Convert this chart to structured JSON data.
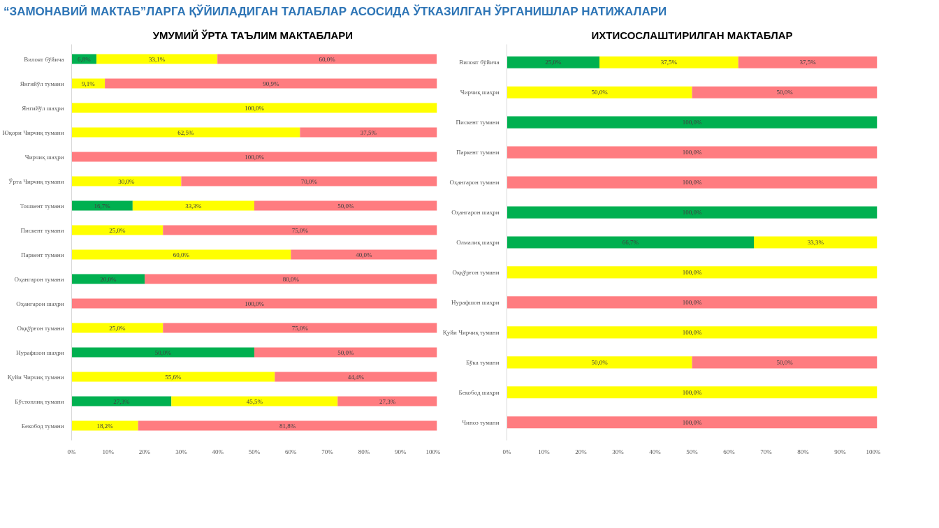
{
  "chart_data": [
    {
      "type": "bar",
      "orientation": "horizontal",
      "stacked": true,
      "title": "УМУМИЙ ЎРТА ТАЪЛИМ  МАКТАБЛАРИ",
      "annotations": [
        "“ЗАМОНАВИЙ МАКТАБ”ЛАРГА ҚЎЙИЛАДИГАН ТАЛАБЛАР АСОСИДА ЎТКАЗИЛГАН ЎРГАНИШЛАР НАТИЖАЛАРИ"
      ],
      "categories": [
        "Вилоят бўйича",
        "Янгийўл тумани",
        "Янгийўл шаҳри",
        "Юқори Чирчиқ тумани",
        "Чирчиқ шаҳри",
        "Ўрта Чирчиқ тумани",
        "Тошкент тумани",
        "Пискент тумани",
        "Паркент тумани",
        "Оҳангарон тумани",
        "Оҳангарон шаҳри",
        "Оққўрғон тумани",
        "Нурафшон шаҳри",
        "Қуйи Чирчиқ тумани",
        "Бўстонлиқ тумани",
        "Бекобод тумани"
      ],
      "xlim": [
        0,
        100
      ],
      "xticks": [
        {
          "value": 0,
          "label": "0%"
        },
        {
          "value": 10,
          "label": "10%"
        },
        {
          "value": 20,
          "label": "20%"
        },
        {
          "value": 30,
          "label": "30%"
        },
        {
          "value": 40,
          "label": "40%"
        },
        {
          "value": 50,
          "label": "50%"
        },
        {
          "value": 60,
          "label": "60%"
        },
        {
          "value": 70,
          "label": "70%"
        },
        {
          "value": 80,
          "label": "80%"
        },
        {
          "value": 90,
          "label": "90%"
        },
        {
          "value": 100,
          "label": "100%"
        }
      ],
      "grid": false,
      "series": [
        {
          "color": "#00b050",
          "values": [
            6.8,
            0,
            0,
            0,
            0,
            0,
            16.7,
            0,
            0,
            20,
            0,
            0,
            50,
            0,
            27.3,
            0
          ],
          "value_labels": [
            "6,8%",
            null,
            null,
            null,
            null,
            null,
            "16,7%",
            null,
            null,
            "20,0%",
            null,
            null,
            "50,0%",
            null,
            "27,3%",
            null
          ]
        },
        {
          "color": "#ffff00",
          "values": [
            33.1,
            9.1,
            100,
            62.5,
            0,
            30,
            33.3,
            25,
            60,
            0,
            0,
            25,
            0,
            55.6,
            45.5,
            18.2
          ],
          "value_labels": [
            "33,1%",
            "9,1%",
            "100,0%",
            "62,5%",
            null,
            "30,0%",
            "33,3%",
            "25,0%",
            "60,0%",
            null,
            null,
            "25,0%",
            null,
            "55,6%",
            "45,5%",
            "18,2%"
          ]
        },
        {
          "color": "#ff7c80",
          "values": [
            60.0,
            90.9,
            0,
            37.5,
            100,
            70,
            50,
            75,
            40,
            80,
            100,
            75,
            50,
            44.4,
            27.3,
            81.8
          ],
          "value_labels": [
            "60,0%",
            "90,9%",
            null,
            "37,5%",
            "100,0%",
            "70,0%",
            "50,0%",
            "75,0%",
            "40,0%",
            "80,0%",
            "100,0%",
            "75,0%",
            "50,0%",
            "44,4%",
            "27,3%",
            "81,8%"
          ]
        }
      ]
    },
    {
      "type": "bar",
      "orientation": "horizontal",
      "stacked": true,
      "title": "ИХТИСОСЛАШТИРИЛГАН МАКТАБЛАР",
      "categories": [
        "Вилоят бўйича",
        "Чирчиқ шаҳри",
        "Пискент тумани",
        "Паркент тумани",
        "Оҳангарон тумани",
        "Оҳангарон шаҳри",
        "Олмалиқ шаҳри",
        "Оққўрғон тумани",
        "Нурафшон шаҳри",
        "Қуйи Чирчиқ тумани",
        "Бўка тумани",
        "Бекобод шаҳри",
        "Чиноз тумани"
      ],
      "xlim": [
        0,
        100
      ],
      "xticks": [
        {
          "value": 0,
          "label": "0%"
        },
        {
          "value": 10,
          "label": "10%"
        },
        {
          "value": 20,
          "label": "20%"
        },
        {
          "value": 30,
          "label": "30%"
        },
        {
          "value": 40,
          "label": "40%"
        },
        {
          "value": 50,
          "label": "50%"
        },
        {
          "value": 60,
          "label": "60%"
        },
        {
          "value": 70,
          "label": "70%"
        },
        {
          "value": 80,
          "label": "80%"
        },
        {
          "value": 90,
          "label": "90%"
        },
        {
          "value": 100,
          "label": "100%"
        }
      ],
      "grid": false,
      "series": [
        {
          "color": "#00b050",
          "values": [
            25,
            0,
            100,
            0,
            0,
            100,
            66.7,
            0,
            0,
            0,
            0,
            0,
            0
          ],
          "value_labels": [
            "25,0%",
            null,
            "100,0%",
            null,
            null,
            "100,0%",
            "66,7%",
            null,
            null,
            null,
            null,
            null,
            null
          ]
        },
        {
          "color": "#ffff00",
          "values": [
            37.5,
            50,
            0,
            0,
            0,
            0,
            33.3,
            100,
            0,
            100,
            50,
            100,
            0
          ],
          "value_labels": [
            "37,5%",
            "50,0%",
            null,
            null,
            null,
            null,
            "33,3%",
            "100,0%",
            null,
            "100,0%",
            "50,0%",
            "100,0%",
            null
          ]
        },
        {
          "color": "#ff7c80",
          "values": [
            37.5,
            50,
            0,
            100,
            100,
            0,
            0,
            0,
            100,
            0,
            50,
            0,
            100
          ],
          "value_labels": [
            "37,5%",
            "50,0%",
            null,
            "100,0%",
            "100,0%",
            null,
            null,
            null,
            "100,0%",
            null,
            "50,0%",
            null,
            "100,0%"
          ]
        }
      ]
    }
  ]
}
